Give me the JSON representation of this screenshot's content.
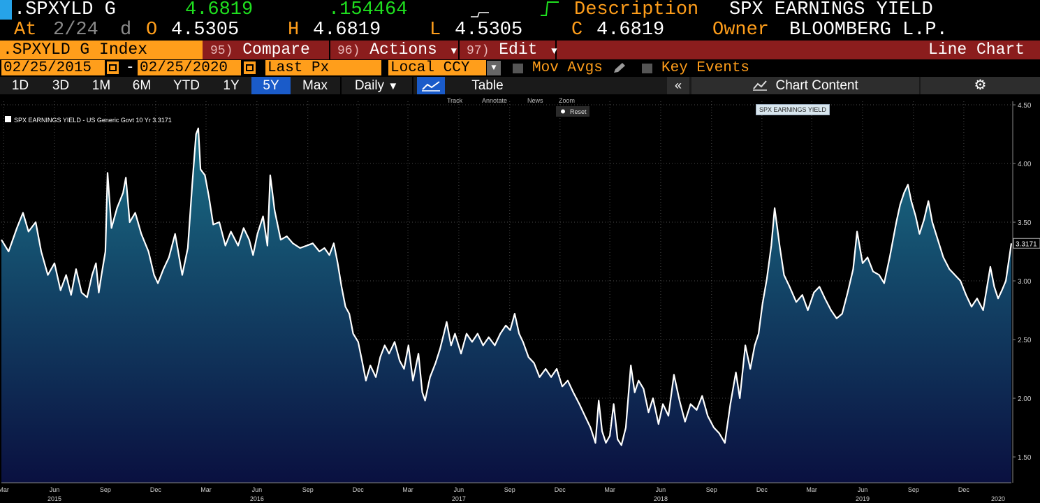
{
  "header": {
    "ticker": ".SPXYLD G",
    "last": "4.6819",
    "change": ".154464",
    "description_label": "Description",
    "description": "SPX EARNINGS YIELD",
    "at_label": "At",
    "at_date": "2/24",
    "at_suffix": "d",
    "open_label": "O",
    "open": "4.5305",
    "high_label": "H",
    "high": "4.6819",
    "low_label": "L",
    "low": "4.5305",
    "close_label": "C",
    "close": "4.6819",
    "owner_label": "Owner",
    "owner": "BLOOMBERG L.P."
  },
  "command_bar": {
    "security": ".SPXYLD G Index",
    "compare_num": "95)",
    "compare": "Compare",
    "actions_num": "96)",
    "actions": "Actions",
    "edit_num": "97)",
    "edit": "Edit",
    "chart_type": "Line Chart"
  },
  "range_bar": {
    "start_date": "02/25/2015",
    "end_date": "02/25/2020",
    "dash": "-",
    "field": "Last Px",
    "currency": "Local CCY",
    "mov_avgs": "Mov Avgs",
    "key_events": "Key Events"
  },
  "period_tabs": [
    "1D",
    "3D",
    "1M",
    "6M",
    "YTD",
    "1Y",
    "5Y",
    "Max"
  ],
  "active_period": "5Y",
  "frequency": "Daily",
  "table_label": "Table",
  "chart_content_label": "Chart Content",
  "toolbar": {
    "track": "Track",
    "annotate": "Annotate",
    "news": "News",
    "zoom": "Zoom",
    "reset": "Reset"
  },
  "tooltip": "SPX EARNINGS YIELD",
  "colors": {
    "amber": "#ff9e1b",
    "green": "#1fe01f",
    "menu_red": "#8b1d1d",
    "active_tab": "#1a5bc9",
    "area_top": "#1a6f86",
    "area_bottom": "#0a1040",
    "line": "#ffffff"
  },
  "icons": [
    "calendar-icon",
    "pencil-icon",
    "line-chart-icon",
    "double-chevron-left-icon",
    "chart-content-icon",
    "gear-icon"
  ],
  "chart_data": {
    "type": "area",
    "legend": "SPX EARNINGS YIELD - US Generic Govt 10 Yr  3.3171",
    "last_value_label": "3.3171",
    "y_ticks": [
      "4.50",
      "4.00",
      "3.50",
      "3.00",
      "2.50",
      "2.00",
      "1.50"
    ],
    "ylim": [
      1.28,
      4.53
    ],
    "xlim": [
      "2015-02-25",
      "2020-02-25"
    ],
    "month_ticks": [
      {
        "label": "Mar",
        "date": "2015-03-01"
      },
      {
        "label": "Jun",
        "date": "2015-06-01"
      },
      {
        "label": "Sep",
        "date": "2015-09-01"
      },
      {
        "label": "Dec",
        "date": "2015-12-01"
      },
      {
        "label": "Mar",
        "date": "2016-03-01"
      },
      {
        "label": "Jun",
        "date": "2016-06-01"
      },
      {
        "label": "Sep",
        "date": "2016-09-01"
      },
      {
        "label": "Dec",
        "date": "2016-12-01"
      },
      {
        "label": "Mar",
        "date": "2017-03-01"
      },
      {
        "label": "Jun",
        "date": "2017-06-01"
      },
      {
        "label": "Sep",
        "date": "2017-09-01"
      },
      {
        "label": "Dec",
        "date": "2017-12-01"
      },
      {
        "label": "Mar",
        "date": "2018-03-01"
      },
      {
        "label": "Jun",
        "date": "2018-06-01"
      },
      {
        "label": "Sep",
        "date": "2018-09-01"
      },
      {
        "label": "Dec",
        "date": "2018-12-01"
      },
      {
        "label": "Mar",
        "date": "2019-03-01"
      },
      {
        "label": "Jun",
        "date": "2019-06-01"
      },
      {
        "label": "Sep",
        "date": "2019-09-01"
      },
      {
        "label": "Dec",
        "date": "2019-12-01"
      }
    ],
    "year_ticks": [
      {
        "label": "2015",
        "date": "2015-06-01"
      },
      {
        "label": "2016",
        "date": "2016-06-01"
      },
      {
        "label": "2017",
        "date": "2017-06-01"
      },
      {
        "label": "2018",
        "date": "2018-06-01"
      },
      {
        "label": "2019",
        "date": "2019-06-01"
      },
      {
        "label": "2020",
        "date": "2020-02-01"
      }
    ],
    "series": [
      {
        "name": "SPX EARNINGS YIELD - US Generic Govt 10 Yr",
        "points": [
          [
            "2015-02-25",
            3.35
          ],
          [
            "2015-03-10",
            3.25
          ],
          [
            "2015-03-25",
            3.45
          ],
          [
            "2015-04-05",
            3.58
          ],
          [
            "2015-04-15",
            3.42
          ],
          [
            "2015-04-28",
            3.5
          ],
          [
            "2015-05-08",
            3.25
          ],
          [
            "2015-05-20",
            3.05
          ],
          [
            "2015-06-01",
            3.15
          ],
          [
            "2015-06-12",
            2.92
          ],
          [
            "2015-06-22",
            3.05
          ],
          [
            "2015-07-01",
            2.88
          ],
          [
            "2015-07-10",
            3.1
          ],
          [
            "2015-07-20",
            2.9
          ],
          [
            "2015-07-30",
            2.86
          ],
          [
            "2015-08-08",
            3.05
          ],
          [
            "2015-08-15",
            3.15
          ],
          [
            "2015-08-20",
            2.9
          ],
          [
            "2015-08-25",
            3.05
          ],
          [
            "2015-09-01",
            3.25
          ],
          [
            "2015-09-05",
            3.92
          ],
          [
            "2015-09-12",
            3.45
          ],
          [
            "2015-09-22",
            3.62
          ],
          [
            "2015-10-03",
            3.75
          ],
          [
            "2015-10-08",
            3.88
          ],
          [
            "2015-10-15",
            3.5
          ],
          [
            "2015-10-25",
            3.58
          ],
          [
            "2015-11-05",
            3.4
          ],
          [
            "2015-11-18",
            3.25
          ],
          [
            "2015-11-28",
            3.05
          ],
          [
            "2015-12-05",
            2.98
          ],
          [
            "2015-12-15",
            3.1
          ],
          [
            "2015-12-25",
            3.2
          ],
          [
            "2016-01-05",
            3.4
          ],
          [
            "2016-01-18",
            3.05
          ],
          [
            "2016-01-28",
            3.28
          ],
          [
            "2016-02-05",
            3.82
          ],
          [
            "2016-02-12",
            4.25
          ],
          [
            "2016-02-16",
            4.3
          ],
          [
            "2016-02-20",
            3.95
          ],
          [
            "2016-02-28",
            3.9
          ],
          [
            "2016-03-06",
            3.72
          ],
          [
            "2016-03-14",
            3.48
          ],
          [
            "2016-03-25",
            3.5
          ],
          [
            "2016-04-05",
            3.3
          ],
          [
            "2016-04-15",
            3.42
          ],
          [
            "2016-04-28",
            3.3
          ],
          [
            "2016-05-08",
            3.45
          ],
          [
            "2016-05-18",
            3.35
          ],
          [
            "2016-05-25",
            3.22
          ],
          [
            "2016-06-02",
            3.4
          ],
          [
            "2016-06-12",
            3.55
          ],
          [
            "2016-06-20",
            3.3
          ],
          [
            "2016-06-25",
            3.9
          ],
          [
            "2016-07-03",
            3.6
          ],
          [
            "2016-07-14",
            3.35
          ],
          [
            "2016-07-25",
            3.38
          ],
          [
            "2016-08-05",
            3.32
          ],
          [
            "2016-08-18",
            3.28
          ],
          [
            "2016-08-30",
            3.3
          ],
          [
            "2016-09-10",
            3.32
          ],
          [
            "2016-09-22",
            3.25
          ],
          [
            "2016-10-01",
            3.28
          ],
          [
            "2016-10-10",
            3.22
          ],
          [
            "2016-10-18",
            3.32
          ],
          [
            "2016-10-25",
            3.15
          ],
          [
            "2016-11-01",
            2.95
          ],
          [
            "2016-11-08",
            2.78
          ],
          [
            "2016-11-15",
            2.72
          ],
          [
            "2016-11-22",
            2.55
          ],
          [
            "2016-12-01",
            2.48
          ],
          [
            "2016-12-08",
            2.32
          ],
          [
            "2016-12-15",
            2.15
          ],
          [
            "2016-12-23",
            2.28
          ],
          [
            "2017-01-02",
            2.18
          ],
          [
            "2017-01-10",
            2.35
          ],
          [
            "2017-01-18",
            2.45
          ],
          [
            "2017-01-26",
            2.38
          ],
          [
            "2017-02-05",
            2.48
          ],
          [
            "2017-02-14",
            2.32
          ],
          [
            "2017-02-22",
            2.25
          ],
          [
            "2017-03-02",
            2.45
          ],
          [
            "2017-03-10",
            2.15
          ],
          [
            "2017-03-20",
            2.38
          ],
          [
            "2017-03-27",
            2.05
          ],
          [
            "2017-04-01",
            1.98
          ],
          [
            "2017-04-10",
            2.18
          ],
          [
            "2017-04-20",
            2.3
          ],
          [
            "2017-04-28",
            2.42
          ],
          [
            "2017-05-05",
            2.55
          ],
          [
            "2017-05-10",
            2.65
          ],
          [
            "2017-05-18",
            2.45
          ],
          [
            "2017-05-25",
            2.55
          ],
          [
            "2017-06-05",
            2.38
          ],
          [
            "2017-06-15",
            2.55
          ],
          [
            "2017-06-25",
            2.48
          ],
          [
            "2017-07-05",
            2.55
          ],
          [
            "2017-07-15",
            2.45
          ],
          [
            "2017-07-25",
            2.52
          ],
          [
            "2017-08-05",
            2.45
          ],
          [
            "2017-08-15",
            2.55
          ],
          [
            "2017-08-25",
            2.62
          ],
          [
            "2017-09-02",
            2.58
          ],
          [
            "2017-09-10",
            2.72
          ],
          [
            "2017-09-18",
            2.55
          ],
          [
            "2017-09-25",
            2.48
          ],
          [
            "2017-10-05",
            2.35
          ],
          [
            "2017-10-15",
            2.3
          ],
          [
            "2017-10-25",
            2.18
          ],
          [
            "2017-11-05",
            2.25
          ],
          [
            "2017-11-15",
            2.18
          ],
          [
            "2017-11-25",
            2.25
          ],
          [
            "2017-12-05",
            2.1
          ],
          [
            "2017-12-15",
            2.15
          ],
          [
            "2017-12-25",
            2.05
          ],
          [
            "2018-01-05",
            1.95
          ],
          [
            "2018-01-15",
            1.85
          ],
          [
            "2018-01-25",
            1.75
          ],
          [
            "2018-02-03",
            1.62
          ],
          [
            "2018-02-09",
            1.98
          ],
          [
            "2018-02-15",
            1.72
          ],
          [
            "2018-02-22",
            1.62
          ],
          [
            "2018-03-01",
            1.68
          ],
          [
            "2018-03-08",
            1.95
          ],
          [
            "2018-03-15",
            1.65
          ],
          [
            "2018-03-22",
            1.6
          ],
          [
            "2018-03-30",
            1.75
          ],
          [
            "2018-04-08",
            2.28
          ],
          [
            "2018-04-15",
            2.05
          ],
          [
            "2018-04-22",
            2.15
          ],
          [
            "2018-05-01",
            2.08
          ],
          [
            "2018-05-10",
            1.88
          ],
          [
            "2018-05-18",
            2.0
          ],
          [
            "2018-05-28",
            1.78
          ],
          [
            "2018-06-05",
            1.95
          ],
          [
            "2018-06-15",
            1.85
          ],
          [
            "2018-06-25",
            2.2
          ],
          [
            "2018-07-05",
            1.98
          ],
          [
            "2018-07-15",
            1.8
          ],
          [
            "2018-07-25",
            1.95
          ],
          [
            "2018-08-05",
            1.9
          ],
          [
            "2018-08-15",
            2.02
          ],
          [
            "2018-08-25",
            1.85
          ],
          [
            "2018-09-05",
            1.75
          ],
          [
            "2018-09-15",
            1.7
          ],
          [
            "2018-09-25",
            1.62
          ],
          [
            "2018-10-05",
            1.95
          ],
          [
            "2018-10-15",
            2.22
          ],
          [
            "2018-10-22",
            2.0
          ],
          [
            "2018-11-01",
            2.45
          ],
          [
            "2018-11-10",
            2.25
          ],
          [
            "2018-11-18",
            2.45
          ],
          [
            "2018-11-25",
            2.55
          ],
          [
            "2018-12-02",
            2.8
          ],
          [
            "2018-12-10",
            3.02
          ],
          [
            "2018-12-18",
            3.3
          ],
          [
            "2018-12-24",
            3.62
          ],
          [
            "2019-01-02",
            3.3
          ],
          [
            "2019-01-10",
            3.05
          ],
          [
            "2019-01-20",
            2.95
          ],
          [
            "2019-02-01",
            2.82
          ],
          [
            "2019-02-12",
            2.88
          ],
          [
            "2019-02-22",
            2.75
          ],
          [
            "2019-03-05",
            2.9
          ],
          [
            "2019-03-15",
            2.95
          ],
          [
            "2019-03-25",
            2.85
          ],
          [
            "2019-04-05",
            2.75
          ],
          [
            "2019-04-15",
            2.68
          ],
          [
            "2019-04-25",
            2.72
          ],
          [
            "2019-05-05",
            2.9
          ],
          [
            "2019-05-15",
            3.1
          ],
          [
            "2019-05-22",
            3.42
          ],
          [
            "2019-06-01",
            3.15
          ],
          [
            "2019-06-10",
            3.2
          ],
          [
            "2019-06-20",
            3.08
          ],
          [
            "2019-07-01",
            3.05
          ],
          [
            "2019-07-10",
            2.98
          ],
          [
            "2019-07-20",
            3.2
          ],
          [
            "2019-08-01",
            3.5
          ],
          [
            "2019-08-08",
            3.65
          ],
          [
            "2019-08-15",
            3.75
          ],
          [
            "2019-08-22",
            3.82
          ],
          [
            "2019-08-28",
            3.68
          ],
          [
            "2019-09-05",
            3.55
          ],
          [
            "2019-09-12",
            3.4
          ],
          [
            "2019-09-20",
            3.52
          ],
          [
            "2019-09-28",
            3.68
          ],
          [
            "2019-10-05",
            3.5
          ],
          [
            "2019-10-15",
            3.35
          ],
          [
            "2019-10-25",
            3.2
          ],
          [
            "2019-11-05",
            3.1
          ],
          [
            "2019-11-15",
            3.05
          ],
          [
            "2019-11-25",
            3.0
          ],
          [
            "2019-12-05",
            2.88
          ],
          [
            "2019-12-15",
            2.78
          ],
          [
            "2019-12-25",
            2.85
          ],
          [
            "2020-01-05",
            2.75
          ],
          [
            "2020-01-12",
            2.95
          ],
          [
            "2020-01-18",
            3.12
          ],
          [
            "2020-01-25",
            2.95
          ],
          [
            "2020-02-01",
            2.85
          ],
          [
            "2020-02-08",
            2.92
          ],
          [
            "2020-02-15",
            3.0
          ],
          [
            "2020-02-25",
            3.32
          ]
        ]
      }
    ]
  }
}
